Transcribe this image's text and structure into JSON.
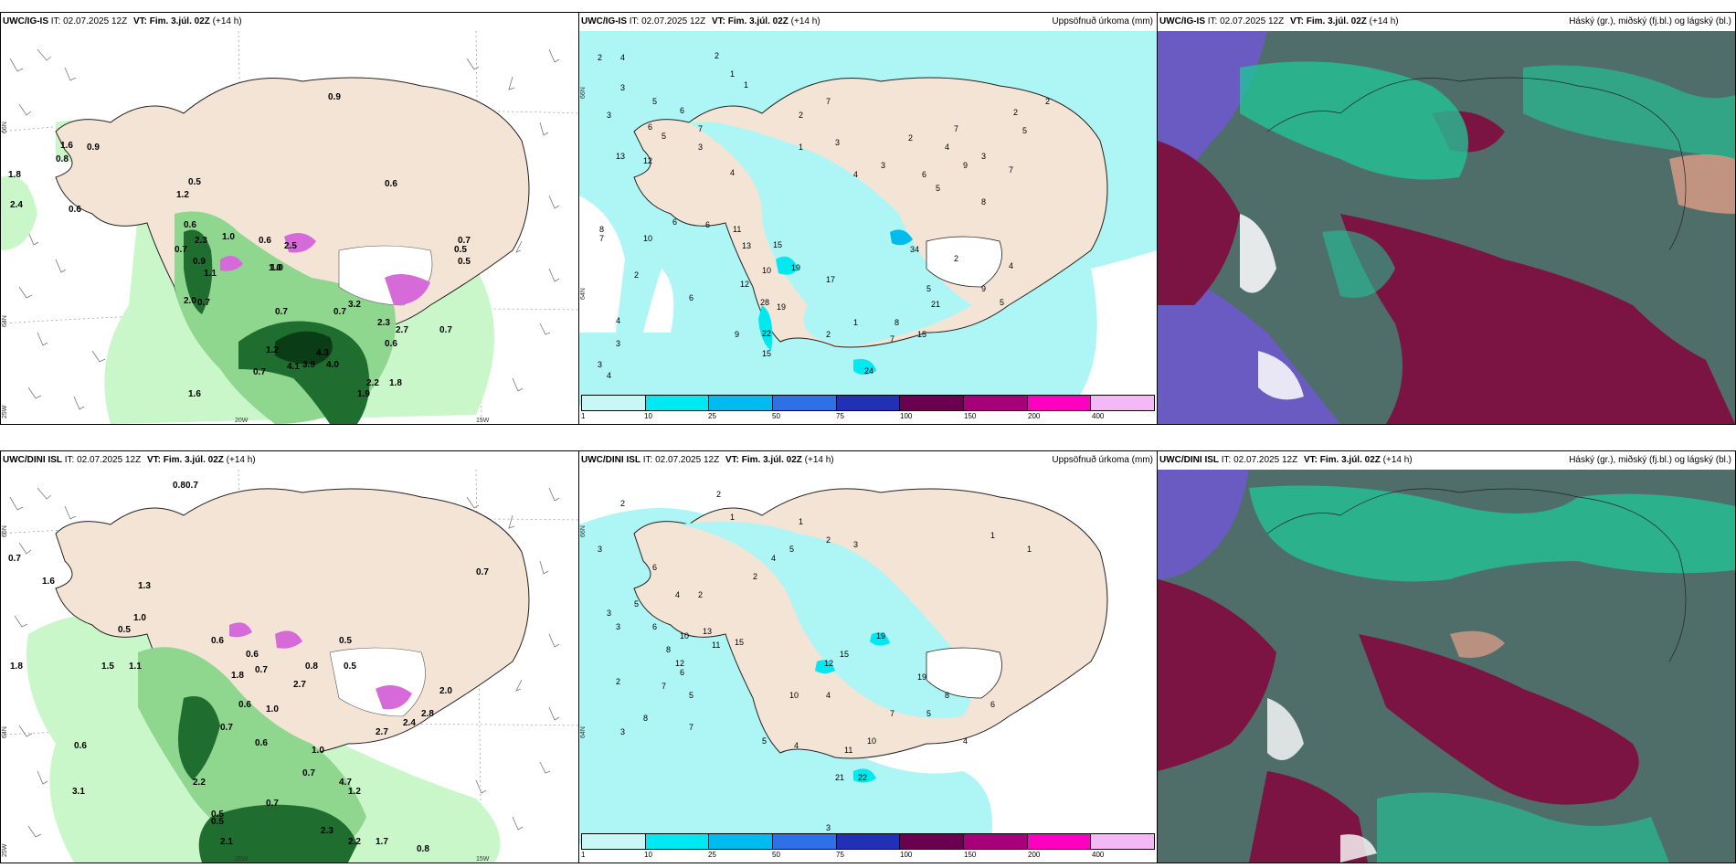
{
  "rows": [
    {
      "model": "UWC/IG-IS",
      "issue_prefix": "IT: 02.07.2025 12Z",
      "vt_prefix": "VT: Fim. 3.júl. 02Z",
      "lead": "(+14 h)"
    },
    {
      "model": "UWC/DINI ISL",
      "issue_prefix": "IT: 02.07.2025 12Z",
      "vt_prefix": "VT: Fim. 3.júl. 02Z",
      "lead": "(+14 h)"
    }
  ],
  "panel_titles": {
    "precip": "Uppsöfnuð úrkoma (mm)",
    "clouds": "Háský (gr.), miðský (fj.bl.) og lágský (bl.)"
  },
  "axis_labels": {
    "lat66": "66N",
    "lat64": "64N",
    "lon20": "20W",
    "lon15": "15W",
    "lon25": "25W"
  },
  "colorbar": {
    "ticks": [
      "1",
      "10",
      "25",
      "50",
      "75",
      "100",
      "150",
      "200",
      "400"
    ],
    "colors": [
      "#c8f7f7",
      "#00e8f0",
      "#00bcec",
      "#2f70e8",
      "#2230b8",
      "#6a0050",
      "#a8007a",
      "#ff00c0",
      "#f4b8f4"
    ]
  },
  "colors": {
    "land": "#f3e4d6",
    "coast": "#222222",
    "precip_light": "#c9f7c9",
    "precip_mid": "#8fd68f",
    "precip_dark": "#1f6d2f",
    "precip_vdark": "#0a3d16",
    "snow_magenta": "#d76ad9",
    "accum_cyan": "#aef5f5",
    "cloud_high": "#6a5bc2",
    "cloud_mid": "#1fc99a",
    "cloud_low": "#7b1442",
    "cloud_grey": "#4f6e6a"
  },
  "left_top_values": [
    "0.9",
    "0.6",
    "1.6",
    "0.8",
    "0.9",
    "1.8",
    "2.4",
    "0.6",
    "0.5",
    "1.2",
    "0.6",
    "0.7",
    "2.3",
    "0.9",
    "1.1",
    "1.0",
    "0.6",
    "1.0",
    "2.5",
    "0.7",
    "2.0",
    "0.7",
    "0.5",
    "0.7",
    "3.2",
    "2.3",
    "0.7",
    "2.7",
    "0.7",
    "1.2",
    "4.3",
    "3.9",
    "4.0",
    "4.1",
    "0.7",
    "0.6",
    "2.2",
    "1.8",
    "1.6",
    "1.9",
    "0.5",
    "1.0"
  ],
  "left_bot_values": [
    "0.8",
    "0.7",
    "0.7",
    "0.6",
    "0.7",
    "1.6",
    "1.3",
    "1.0",
    "0.5",
    "1.8",
    "1.1",
    "1.5",
    "0.6",
    "0.7",
    "1.8",
    "2.7",
    "0.8",
    "0.5",
    "0.6",
    "1.0",
    "0.7",
    "0.6",
    "1.0",
    "0.7",
    "2.2",
    "4.7",
    "1.2",
    "0.5",
    "0.7",
    "0.5",
    "2.3",
    "2.1",
    "2.2",
    "1.7",
    "0.8",
    "2.0",
    "2.8",
    "2.4",
    "2.7",
    "0.5",
    "3.1",
    "0.6"
  ],
  "mid_top_values": [
    "2",
    "4",
    "2",
    "1",
    "3",
    "3",
    "5",
    "2",
    "7",
    "1",
    "6",
    "7",
    "6",
    "5",
    "13",
    "12",
    "3",
    "4",
    "1",
    "3",
    "4",
    "3",
    "2",
    "6",
    "5",
    "4",
    "7",
    "9",
    "3",
    "8",
    "7",
    "6",
    "8",
    "7",
    "10",
    "11",
    "6",
    "13",
    "15",
    "19",
    "17",
    "10",
    "12",
    "28",
    "19",
    "22",
    "15",
    "2",
    "1",
    "4",
    "3",
    "2",
    "9",
    "7",
    "6",
    "24",
    "34",
    "2",
    "21",
    "8",
    "3",
    "4",
    "5",
    "15",
    "9",
    "5",
    "4",
    "2",
    "5",
    "2"
  ],
  "mid_bot_values": [
    "2",
    "3",
    "2",
    "1",
    "3",
    "5",
    "6",
    "3",
    "4",
    "2",
    "4",
    "5",
    "1",
    "2",
    "3",
    "6",
    "8",
    "10",
    "13",
    "11",
    "12",
    "15",
    "19",
    "15",
    "12",
    "10",
    "4",
    "6",
    "7",
    "5",
    "2",
    "8",
    "7",
    "11",
    "10",
    "22",
    "21",
    "5",
    "4",
    "3",
    "19",
    "5",
    "7",
    "8",
    "6",
    "4",
    "1",
    "1",
    "3",
    "2"
  ]
}
